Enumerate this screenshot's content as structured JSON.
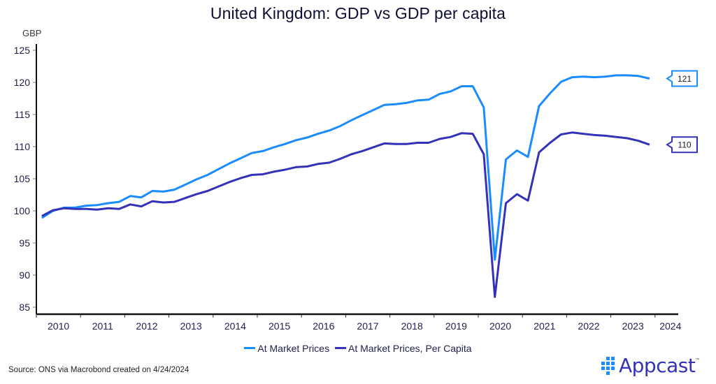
{
  "title": "United Kingdom: GDP vs GDP per capita",
  "unit_label": "GBP",
  "source": "Source: ONS via Macrobond created on 4/24/2024",
  "logo": {
    "name": "Appcast",
    "trademark": "™",
    "colors": {
      "mark": "#1a8cff",
      "text": "#3432b8"
    }
  },
  "chart_data": {
    "type": "line",
    "title": "United Kingdom: GDP vs GDP per capita",
    "xlabel": "",
    "ylabel": "GBP",
    "ylim": [
      85,
      125
    ],
    "yticks": [
      125,
      120,
      115,
      110,
      105,
      100,
      95,
      90,
      85
    ],
    "xlim": [
      2009.875,
      2024.125
    ],
    "xticks": [
      "2010",
      "2011",
      "2012",
      "2013",
      "2014",
      "2015",
      "2016",
      "2017",
      "2018",
      "2019",
      "2020",
      "2021",
      "2022",
      "2023",
      "2024"
    ],
    "grid": false,
    "legend_position": "bottom",
    "frequency": "quarterly",
    "x": [
      "2010 Q1",
      "2010 Q2",
      "2010 Q3",
      "2010 Q4",
      "2011 Q1",
      "2011 Q2",
      "2011 Q3",
      "2011 Q4",
      "2012 Q1",
      "2012 Q2",
      "2012 Q3",
      "2012 Q4",
      "2013 Q1",
      "2013 Q2",
      "2013 Q3",
      "2013 Q4",
      "2014 Q1",
      "2014 Q2",
      "2014 Q3",
      "2014 Q4",
      "2015 Q1",
      "2015 Q2",
      "2015 Q3",
      "2015 Q4",
      "2016 Q1",
      "2016 Q2",
      "2016 Q3",
      "2016 Q4",
      "2017 Q1",
      "2017 Q2",
      "2017 Q3",
      "2017 Q4",
      "2018 Q1",
      "2018 Q2",
      "2018 Q3",
      "2018 Q4",
      "2019 Q1",
      "2019 Q2",
      "2019 Q3",
      "2019 Q4",
      "2020 Q1",
      "2020 Q2",
      "2020 Q3",
      "2020 Q4",
      "2021 Q1",
      "2021 Q2",
      "2021 Q3",
      "2021 Q4",
      "2022 Q1",
      "2022 Q2",
      "2022 Q3",
      "2022 Q4",
      "2023 Q1",
      "2023 Q2",
      "2023 Q3",
      "2023 Q4"
    ],
    "series": [
      {
        "name": "At Market Prices",
        "color": "#1a8cff",
        "end_label": "121",
        "values": [
          98.9,
          100.0,
          100.5,
          100.5,
          100.8,
          100.9,
          101.2,
          101.4,
          102.3,
          102.1,
          103.1,
          103.0,
          103.3,
          104.1,
          104.9,
          105.6,
          106.5,
          107.4,
          108.2,
          109.0,
          109.3,
          109.9,
          110.4,
          111.0,
          111.4,
          112.0,
          112.5,
          113.2,
          114.1,
          114.9,
          115.7,
          116.5,
          116.6,
          116.8,
          117.2,
          117.3,
          118.2,
          118.6,
          119.4,
          119.4,
          116.1,
          92.4,
          108.0,
          109.4,
          108.4,
          116.3,
          118.3,
          120.1,
          120.8,
          120.9,
          120.8,
          120.9,
          121.1,
          121.1,
          121.0,
          120.6
        ]
      },
      {
        "name": "At Market Prices, Per Capita",
        "color": "#3432b8",
        "end_label": "110",
        "values": [
          99.2,
          100.1,
          100.4,
          100.3,
          100.3,
          100.2,
          100.4,
          100.3,
          101.0,
          100.7,
          101.5,
          101.3,
          101.4,
          102.0,
          102.6,
          103.1,
          103.8,
          104.5,
          105.1,
          105.6,
          105.7,
          106.1,
          106.4,
          106.8,
          106.9,
          107.3,
          107.5,
          108.1,
          108.8,
          109.3,
          109.9,
          110.5,
          110.4,
          110.4,
          110.6,
          110.6,
          111.2,
          111.5,
          112.1,
          112.0,
          108.8,
          86.6,
          101.2,
          102.6,
          101.6,
          109.1,
          110.6,
          111.9,
          112.2,
          112.0,
          111.8,
          111.7,
          111.5,
          111.3,
          110.9,
          110.3
        ]
      }
    ]
  }
}
